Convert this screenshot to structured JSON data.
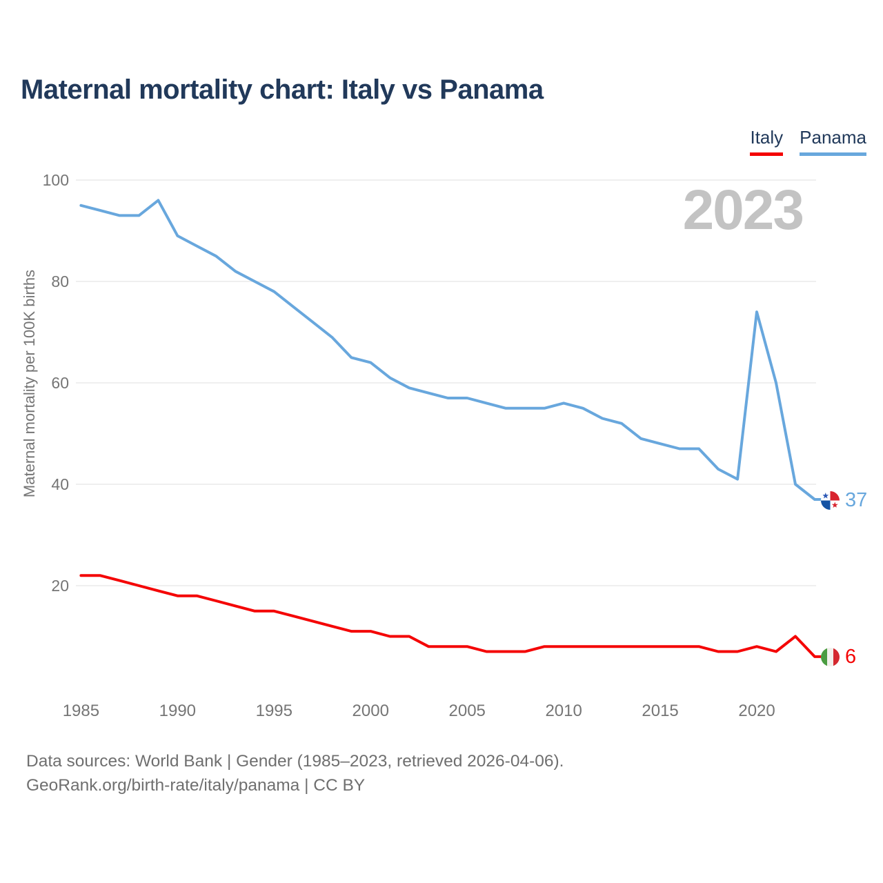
{
  "title": "Maternal mortality chart: Italy vs Panama",
  "watermark": "2023",
  "footer": {
    "line1": "Data sources: World Bank | Gender (1985–2023, retrieved 2026-04-06).",
    "line2": "GeoRank.org/birth-rate/italy/panama | CC BY"
  },
  "chart_data": {
    "type": "line",
    "title": "Maternal mortality chart: Italy vs Panama",
    "xlabel": "",
    "ylabel": "Maternal mortality per 100K births",
    "xlim": [
      1985,
      2023
    ],
    "ylim": [
      0,
      100
    ],
    "grid": "horizontal",
    "legend_position": "top-right",
    "x_ticks": [
      1985,
      1990,
      1995,
      2000,
      2005,
      2010,
      2015,
      2020
    ],
    "y_ticks": [
      20,
      40,
      60,
      80,
      100
    ],
    "x": [
      1985,
      1986,
      1987,
      1988,
      1989,
      1990,
      1991,
      1992,
      1993,
      1994,
      1995,
      1996,
      1997,
      1998,
      1999,
      2000,
      2001,
      2002,
      2003,
      2004,
      2005,
      2006,
      2007,
      2008,
      2009,
      2010,
      2011,
      2012,
      2013,
      2014,
      2015,
      2016,
      2017,
      2018,
      2019,
      2020,
      2021,
      2022,
      2023
    ],
    "series": [
      {
        "name": "Italy",
        "color": "#f40404",
        "end_label": "6",
        "flag": "italy-flag",
        "values": [
          22,
          22,
          21,
          20,
          19,
          18,
          18,
          17,
          16,
          15,
          15,
          14,
          13,
          12,
          11,
          11,
          10,
          10,
          8,
          8,
          8,
          7,
          7,
          7,
          8,
          8,
          8,
          8,
          8,
          8,
          8,
          8,
          8,
          7,
          7,
          8,
          7,
          10,
          6
        ]
      },
      {
        "name": "Panama",
        "color": "#68a7dd",
        "end_label": "37",
        "flag": "panama-flag",
        "values": [
          95,
          94,
          93,
          93,
          96,
          89,
          87,
          85,
          82,
          80,
          78,
          75,
          72,
          69,
          65,
          64,
          61,
          59,
          58,
          57,
          57,
          56,
          55,
          55,
          55,
          56,
          55,
          53,
          52,
          49,
          48,
          47,
          47,
          43,
          41,
          74,
          60,
          40,
          37
        ]
      }
    ]
  }
}
